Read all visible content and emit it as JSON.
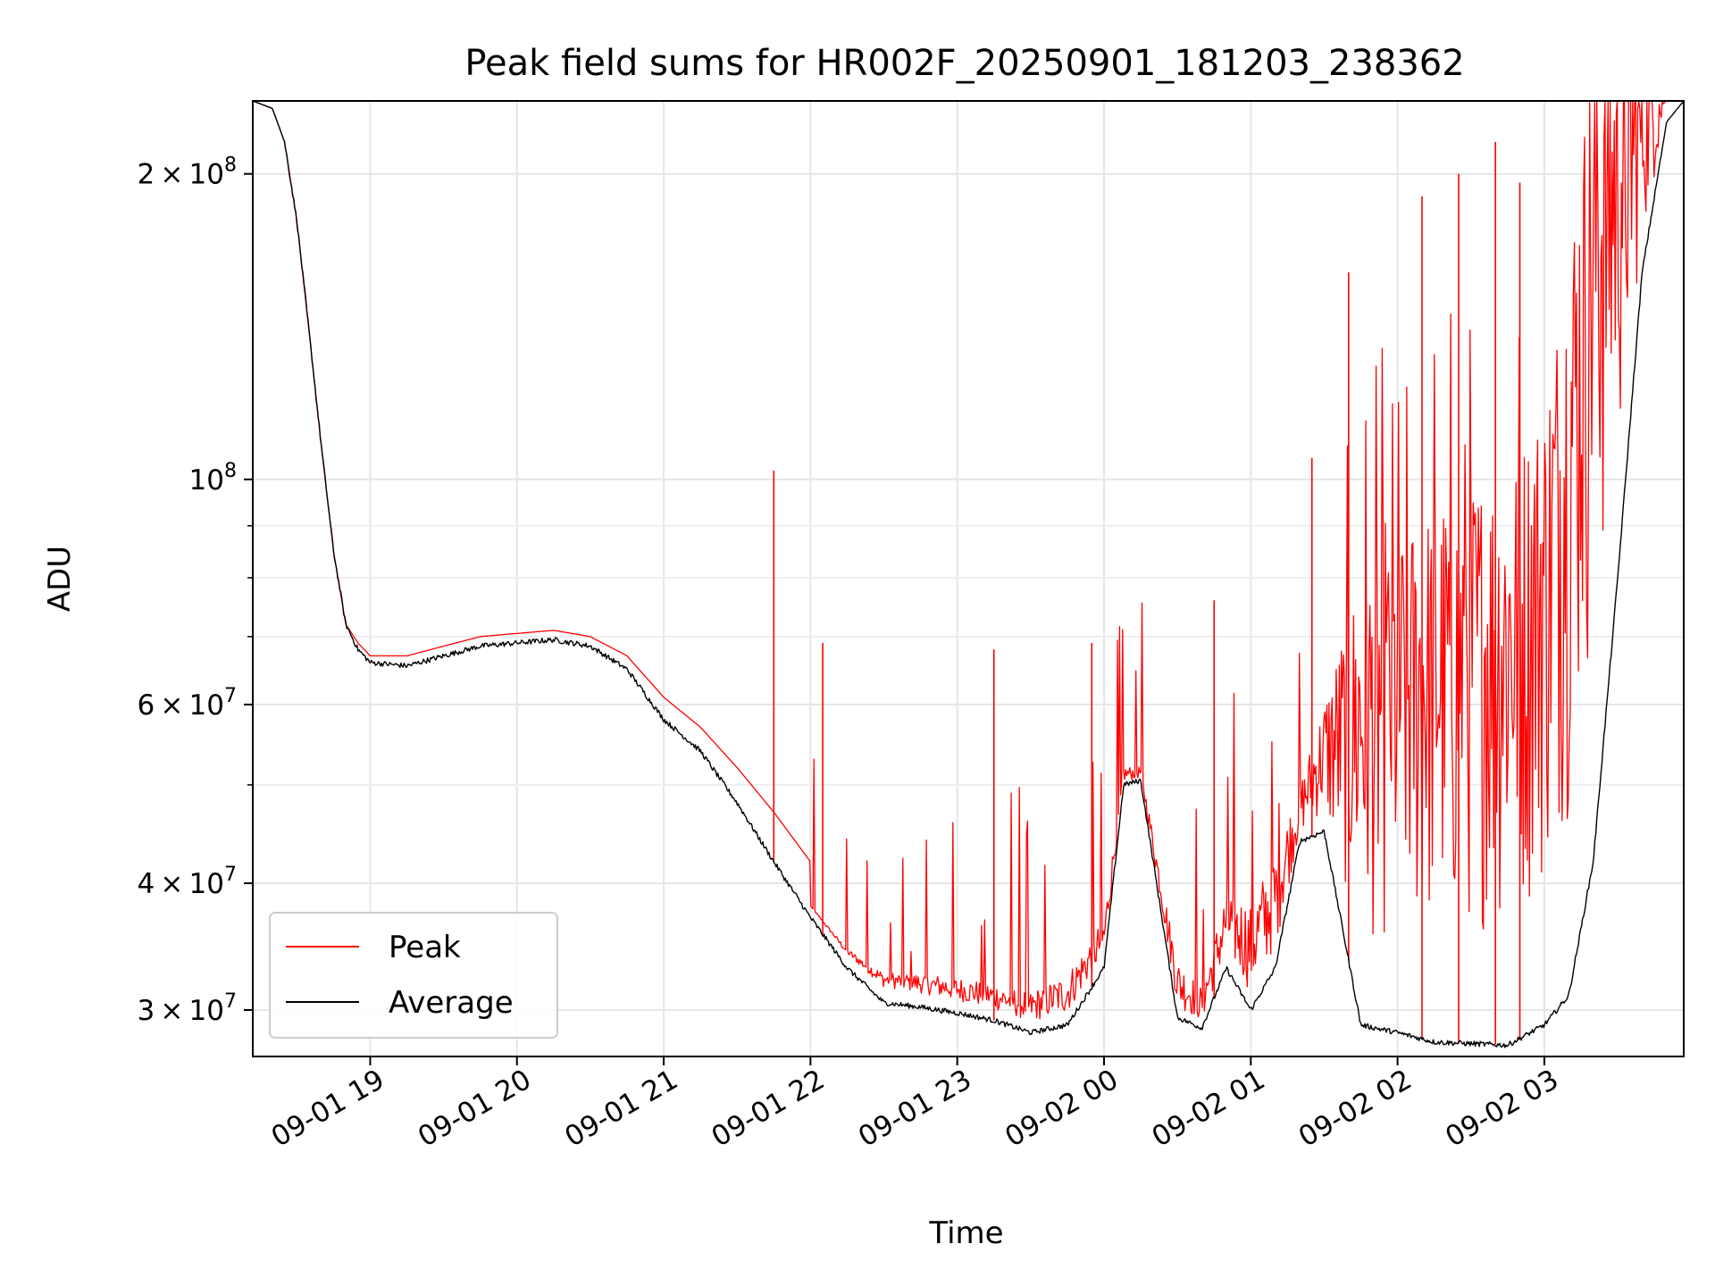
{
  "chart_data": {
    "type": "line",
    "title": "Peak field sums for HR002F_20250901_181203_238362",
    "xlabel": "Time",
    "ylabel": "ADU",
    "yscale": "log",
    "ylim": [
      27000000,
      236000000
    ],
    "xlim": [
      "2025-09-01 18:12",
      "2025-09-02 03:57"
    ],
    "grid": true,
    "legend": {
      "placement": "lower-left",
      "entries": [
        "Peak",
        "Average"
      ]
    },
    "colors": {
      "Peak": "#ff0000",
      "Average": "#000000"
    },
    "x_ticks": [
      {
        "t": "2025-09-01 19:00",
        "label": "09-01 19"
      },
      {
        "t": "2025-09-01 20:00",
        "label": "09-01 20"
      },
      {
        "t": "2025-09-01 21:00",
        "label": "09-01 21"
      },
      {
        "t": "2025-09-01 22:00",
        "label": "09-01 22"
      },
      {
        "t": "2025-09-01 23:00",
        "label": "09-01 23"
      },
      {
        "t": "2025-09-02 00:00",
        "label": "09-02 00"
      },
      {
        "t": "2025-09-02 01:00",
        "label": "09-02 01"
      },
      {
        "t": "2025-09-02 02:00",
        "label": "09-02 02"
      },
      {
        "t": "2025-09-02 03:00",
        "label": "09-02 03"
      }
    ],
    "y_major_ticks": [
      {
        "value": 30000000,
        "mantissa": "3",
        "exponent": "7",
        "times": "×",
        "base": "10"
      },
      {
        "value": 40000000,
        "mantissa": "4",
        "exponent": "7",
        "times": "×",
        "base": "10"
      },
      {
        "value": 60000000,
        "mantissa": "6",
        "exponent": "7",
        "times": "×",
        "base": "10"
      },
      {
        "value": 100000000,
        "mantissa": "",
        "exponent": "8",
        "times": "",
        "base": "10"
      },
      {
        "value": 200000000,
        "mantissa": "2",
        "exponent": "8",
        "times": "×",
        "base": "10"
      }
    ],
    "y_minor_ticks": [
      50000000,
      70000000,
      80000000,
      90000000
    ],
    "series": [
      {
        "name": "Average",
        "x": [
          "2025-09-01 18:12",
          "2025-09-01 18:20",
          "2025-09-01 18:25",
          "2025-09-01 18:30",
          "2025-09-01 18:35",
          "2025-09-01 18:40",
          "2025-09-01 18:45",
          "2025-09-01 18:50",
          "2025-09-01 18:55",
          "2025-09-01 19:00",
          "2025-09-01 19:15",
          "2025-09-01 19:30",
          "2025-09-01 19:45",
          "2025-09-01 20:00",
          "2025-09-01 20:15",
          "2025-09-01 20:30",
          "2025-09-01 20:45",
          "2025-09-01 21:00",
          "2025-09-01 21:15",
          "2025-09-01 21:30",
          "2025-09-01 21:45",
          "2025-09-01 22:00",
          "2025-09-01 22:15",
          "2025-09-01 22:30",
          "2025-09-01 22:45",
          "2025-09-01 23:00",
          "2025-09-01 23:15",
          "2025-09-01 23:30",
          "2025-09-01 23:45",
          "2025-09-02 00:00",
          "2025-09-02 00:08",
          "2025-09-02 00:15",
          "2025-09-02 00:30",
          "2025-09-02 00:40",
          "2025-09-02 00:50",
          "2025-09-02 01:00",
          "2025-09-02 01:10",
          "2025-09-02 01:20",
          "2025-09-02 01:30",
          "2025-09-02 01:45",
          "2025-09-02 02:00",
          "2025-09-02 02:15",
          "2025-09-02 02:30",
          "2025-09-02 02:45",
          "2025-09-02 03:00",
          "2025-09-02 03:10",
          "2025-09-02 03:20",
          "2025-09-02 03:30",
          "2025-09-02 03:40",
          "2025-09-02 03:50",
          "2025-09-02 03:57"
        ],
        "values": [
          236000000,
          232000000,
          215000000,
          180000000,
          140000000,
          108000000,
          85000000,
          72000000,
          68000000,
          66000000,
          65500000,
          67000000,
          68500000,
          69000000,
          69500000,
          68500000,
          65000000,
          58000000,
          54000000,
          48000000,
          42000000,
          37000000,
          33000000,
          30500000,
          30200000,
          29800000,
          29300000,
          28500000,
          29000000,
          33000000,
          50000000,
          50500000,
          29500000,
          28800000,
          33000000,
          30000000,
          33000000,
          44000000,
          45000000,
          29000000,
          28500000,
          27900000,
          27800000,
          27700000,
          29000000,
          31000000,
          42000000,
          80000000,
          160000000,
          225000000,
          236000000
        ]
      },
      {
        "name": "Peak",
        "x": [
          "2025-09-01 18:12",
          "2025-09-01 18:20",
          "2025-09-01 18:25",
          "2025-09-01 18:30",
          "2025-09-01 18:35",
          "2025-09-01 18:40",
          "2025-09-01 18:45",
          "2025-09-01 18:50",
          "2025-09-01 18:55",
          "2025-09-01 19:00",
          "2025-09-01 19:15",
          "2025-09-01 19:30",
          "2025-09-01 19:45",
          "2025-09-01 20:00",
          "2025-09-01 20:15",
          "2025-09-01 20:30",
          "2025-09-01 20:45",
          "2025-09-01 21:00",
          "2025-09-01 21:15",
          "2025-09-01 21:30",
          "2025-09-01 21:45",
          "2025-09-01 22:00",
          "2025-09-01 22:15",
          "2025-09-01 22:30",
          "2025-09-01 22:45",
          "2025-09-01 23:00",
          "2025-09-01 23:15",
          "2025-09-01 23:30",
          "2025-09-01 23:45",
          "2025-09-02 00:00",
          "2025-09-02 00:08",
          "2025-09-02 00:15",
          "2025-09-02 00:30",
          "2025-09-02 00:40",
          "2025-09-02 00:50",
          "2025-09-02 01:00",
          "2025-09-02 01:10",
          "2025-09-02 01:20",
          "2025-09-02 01:30",
          "2025-09-02 01:45",
          "2025-09-02 02:00",
          "2025-09-02 02:15",
          "2025-09-02 02:30",
          "2025-09-02 02:45",
          "2025-09-02 03:00",
          "2025-09-02 03:10",
          "2025-09-02 03:20",
          "2025-09-02 03:30",
          "2025-09-02 03:40",
          "2025-09-02 03:50",
          "2025-09-02 03:57"
        ],
        "values": [
          236000000,
          232000000,
          215000000,
          180000000,
          140000000,
          108000000,
          85000000,
          72000000,
          69000000,
          67000000,
          67000000,
          68500000,
          70000000,
          70500000,
          71000000,
          70000000,
          67000000,
          61000000,
          57000000,
          52000000,
          47000000,
          42000000,
          38000000,
          36000000,
          35000000,
          34000000,
          33000000,
          32000000,
          33000000,
          37000000,
          52000000,
          52000000,
          33000000,
          31000000,
          38000000,
          36000000,
          40000000,
          48000000,
          55000000,
          60000000,
          62000000,
          65000000,
          68000000,
          70000000,
          80000000,
          110000000,
          170000000,
          200000000,
          225000000,
          236000000,
          236000000
        ],
        "spikes": [
          [
            "2025-09-01 21:45",
            102000000
          ],
          [
            "2025-09-01 22:05",
            69000000
          ],
          [
            "2025-09-01 23:15",
            68000000
          ],
          [
            "2025-09-01 23:55",
            69000000
          ],
          [
            "2025-09-02 00:45",
            76000000
          ],
          [
            "2025-09-02 01:25",
            105000000
          ],
          [
            "2025-09-02 01:40",
            160000000
          ],
          [
            "2025-09-02 02:10",
            190000000
          ],
          [
            "2025-09-02 02:25",
            200000000
          ],
          [
            "2025-09-02 02:40",
            215000000
          ],
          [
            "2025-09-02 02:50",
            196000000
          ]
        ]
      }
    ]
  }
}
